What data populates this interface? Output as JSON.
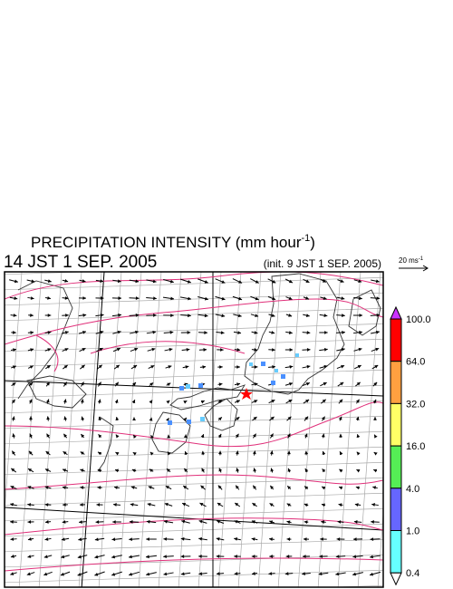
{
  "header": {
    "title": "PRECIPITATION INTENSITY (mm hour",
    "title_superscript": "-1",
    "title_close": ")",
    "valid_time": "14 JST 1 SEP. 2005",
    "init_time": "(init. 9 JST 1 SEP. 2005)"
  },
  "vector_scale": {
    "label": "20 ms",
    "superscript": "-1"
  },
  "colorbar": {
    "labels": [
      "100.0",
      "64.0",
      "32.0",
      "16.0",
      "4.0",
      "1.0",
      "0.4"
    ],
    "over_color": "#cc33ff",
    "colors": [
      "#ff0000",
      "#ffa040",
      "#ffff66",
      "#55ee55",
      "#6666ff",
      "#66ffff"
    ],
    "under_color": "#ffffff"
  }
}
